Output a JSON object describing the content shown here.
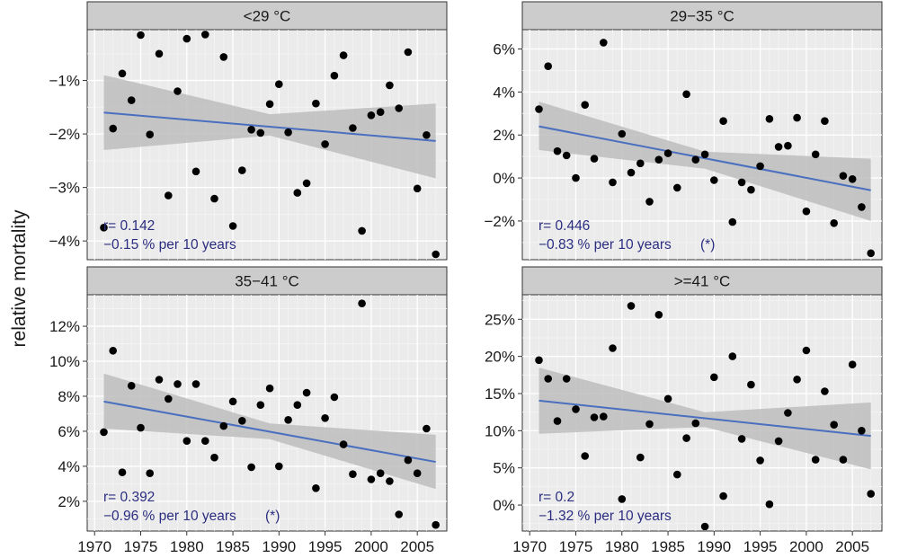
{
  "chart_data": {
    "type": "scatter",
    "ylabel": "relative mortality",
    "xlabel": "",
    "x_ticks": [
      1970,
      1975,
      1980,
      1985,
      1990,
      1995,
      2000,
      2005
    ],
    "x_tick_labels": [
      "1970",
      "1975",
      "1980",
      "1985",
      "1990",
      "1995",
      "2000",
      "2005"
    ],
    "xlim": [
      1969.2,
      2008.2
    ],
    "trend_color": "#4a6fbf",
    "annotation_color": "#2b2d80",
    "band_color": "#bdbdbd",
    "point_color": "#000000",
    "panel_background": "#ebebeb",
    "strip_color": "#cccccc",
    "panels": [
      {
        "title": "<29 °C",
        "ylim": [
          -4.35,
          -0.05
        ],
        "y_ticks": [
          -1,
          -2,
          -3,
          -4
        ],
        "y_tick_labels": [
          "−1%",
          "−2%",
          "−3%",
          "−4%"
        ],
        "trend": {
          "x": [
            1971,
            2007
          ],
          "y": [
            -1.6,
            -2.13
          ]
        },
        "band": {
          "x": [
            1971,
            1989,
            2007
          ],
          "upper": [
            -0.9,
            -1.63,
            -1.43
          ],
          "lower": [
            -2.3,
            -2.03,
            -2.83
          ]
        },
        "points": [
          {
            "x": 1971,
            "y": -3.75
          },
          {
            "x": 1972,
            "y": -1.9
          },
          {
            "x": 1973,
            "y": -0.87
          },
          {
            "x": 1974,
            "y": -1.37
          },
          {
            "x": 1975,
            "y": -0.15
          },
          {
            "x": 1976,
            "y": -2.01
          },
          {
            "x": 1977,
            "y": -0.5
          },
          {
            "x": 1978,
            "y": -3.15
          },
          {
            "x": 1979,
            "y": -1.2
          },
          {
            "x": 1980,
            "y": -0.22
          },
          {
            "x": 1981,
            "y": -2.7
          },
          {
            "x": 1982,
            "y": -0.14
          },
          {
            "x": 1983,
            "y": -3.21
          },
          {
            "x": 1984,
            "y": -0.56
          },
          {
            "x": 1985,
            "y": -3.72
          },
          {
            "x": 1986,
            "y": -2.68
          },
          {
            "x": 1987,
            "y": -1.92
          },
          {
            "x": 1988,
            "y": -1.98
          },
          {
            "x": 1989,
            "y": -1.44
          },
          {
            "x": 1990,
            "y": -1.07
          },
          {
            "x": 1991,
            "y": -1.97
          },
          {
            "x": 1992,
            "y": -3.1
          },
          {
            "x": 1993,
            "y": -2.92
          },
          {
            "x": 1994,
            "y": -1.43
          },
          {
            "x": 1995,
            "y": -2.19
          },
          {
            "x": 1996,
            "y": -0.91
          },
          {
            "x": 1997,
            "y": -0.53
          },
          {
            "x": 1998,
            "y": -1.89
          },
          {
            "x": 1999,
            "y": -3.81
          },
          {
            "x": 2000,
            "y": -1.65
          },
          {
            "x": 2001,
            "y": -1.59
          },
          {
            "x": 2002,
            "y": -1.09
          },
          {
            "x": 2003,
            "y": -1.52
          },
          {
            "x": 2004,
            "y": -0.47
          },
          {
            "x": 2005,
            "y": -3.02
          },
          {
            "x": 2006,
            "y": -2.02
          },
          {
            "x": 2007,
            "y": -4.25
          }
        ],
        "annotation_r": "r= 0.142",
        "annotation_trend": "−0.15 % per 10 years",
        "annotation_sig": ""
      },
      {
        "title": "29−35 °C",
        "ylim": [
          -3.8,
          6.9
        ],
        "y_ticks": [
          6,
          4,
          2,
          0,
          -2
        ],
        "y_tick_labels": [
          "6%",
          "4%",
          "2%",
          "0%",
          "−2%"
        ],
        "trend": {
          "x": [
            1971,
            2007
          ],
          "y": [
            2.4,
            -0.57
          ]
        },
        "band": {
          "x": [
            1971,
            1989,
            2007
          ],
          "upper": [
            3.55,
            1.23,
            0.9
          ],
          "lower": [
            1.3,
            0.43,
            -2.0
          ]
        },
        "points": [
          {
            "x": 1971,
            "y": 3.2
          },
          {
            "x": 1972,
            "y": 5.2
          },
          {
            "x": 1973,
            "y": 1.25
          },
          {
            "x": 1974,
            "y": 1.05
          },
          {
            "x": 1975,
            "y": 0.0
          },
          {
            "x": 1976,
            "y": 3.4
          },
          {
            "x": 1977,
            "y": 0.9
          },
          {
            "x": 1978,
            "y": 6.3
          },
          {
            "x": 1979,
            "y": -0.2
          },
          {
            "x": 1980,
            "y": 2.05
          },
          {
            "x": 1981,
            "y": 0.25
          },
          {
            "x": 1982,
            "y": 0.68
          },
          {
            "x": 1983,
            "y": -1.1
          },
          {
            "x": 1984,
            "y": 0.85
          },
          {
            "x": 1985,
            "y": 1.15
          },
          {
            "x": 1986,
            "y": -0.45
          },
          {
            "x": 1987,
            "y": 3.9
          },
          {
            "x": 1988,
            "y": 0.85
          },
          {
            "x": 1989,
            "y": 1.1
          },
          {
            "x": 1990,
            "y": -0.1
          },
          {
            "x": 1991,
            "y": 2.65
          },
          {
            "x": 1992,
            "y": -2.05
          },
          {
            "x": 1993,
            "y": -0.2
          },
          {
            "x": 1994,
            "y": -0.55
          },
          {
            "x": 1995,
            "y": 0.55
          },
          {
            "x": 1996,
            "y": 2.75
          },
          {
            "x": 1997,
            "y": 1.45
          },
          {
            "x": 1998,
            "y": 1.5
          },
          {
            "x": 1999,
            "y": 2.8
          },
          {
            "x": 2000,
            "y": -1.55
          },
          {
            "x": 2001,
            "y": 1.1
          },
          {
            "x": 2002,
            "y": 2.65
          },
          {
            "x": 2003,
            "y": -2.1
          },
          {
            "x": 2004,
            "y": 0.1
          },
          {
            "x": 2005,
            "y": -0.05
          },
          {
            "x": 2006,
            "y": -1.35
          },
          {
            "x": 2007,
            "y": -3.5
          }
        ],
        "annotation_r": "r= 0.446",
        "annotation_trend": "−0.83 % per 10 years",
        "annotation_sig": "(*)"
      },
      {
        "title": "35−41 °C",
        "ylim": [
          0.3,
          13.8
        ],
        "y_ticks": [
          12,
          10,
          8,
          6,
          4,
          2
        ],
        "y_tick_labels": [
          "12%",
          "10%",
          "8%",
          "6%",
          "4%",
          "2%"
        ],
        "trend": {
          "x": [
            1971,
            2007
          ],
          "y": [
            7.7,
            4.25
          ]
        },
        "band": {
          "x": [
            1971,
            1989,
            2007
          ],
          "upper": [
            9.3,
            6.45,
            5.8
          ],
          "lower": [
            6.15,
            5.55,
            2.7
          ]
        },
        "points": [
          {
            "x": 1971,
            "y": 5.95
          },
          {
            "x": 1972,
            "y": 10.6
          },
          {
            "x": 1973,
            "y": 3.65
          },
          {
            "x": 1974,
            "y": 8.6
          },
          {
            "x": 1975,
            "y": 6.2
          },
          {
            "x": 1976,
            "y": 3.6
          },
          {
            "x": 1977,
            "y": 8.95
          },
          {
            "x": 1978,
            "y": 7.85
          },
          {
            "x": 1979,
            "y": 8.7
          },
          {
            "x": 1980,
            "y": 5.45
          },
          {
            "x": 1981,
            "y": 8.7
          },
          {
            "x": 1982,
            "y": 5.45
          },
          {
            "x": 1983,
            "y": 4.5
          },
          {
            "x": 1984,
            "y": 6.3
          },
          {
            "x": 1985,
            "y": 7.7
          },
          {
            "x": 1986,
            "y": 6.6
          },
          {
            "x": 1987,
            "y": 3.95
          },
          {
            "x": 1988,
            "y": 7.5
          },
          {
            "x": 1989,
            "y": 8.45
          },
          {
            "x": 1990,
            "y": 4.0
          },
          {
            "x": 1991,
            "y": 6.65
          },
          {
            "x": 1992,
            "y": 7.5
          },
          {
            "x": 1993,
            "y": 8.2
          },
          {
            "x": 1994,
            "y": 2.75
          },
          {
            "x": 1995,
            "y": 6.75
          },
          {
            "x": 1996,
            "y": 7.95
          },
          {
            "x": 1997,
            "y": 5.25
          },
          {
            "x": 1998,
            "y": 3.55
          },
          {
            "x": 1999,
            "y": 13.3
          },
          {
            "x": 2000,
            "y": 3.25
          },
          {
            "x": 2001,
            "y": 3.6
          },
          {
            "x": 2002,
            "y": 3.15
          },
          {
            "x": 2003,
            "y": 1.25
          },
          {
            "x": 2004,
            "y": 4.35
          },
          {
            "x": 2005,
            "y": 3.6
          },
          {
            "x": 2006,
            "y": 6.15
          },
          {
            "x": 2007,
            "y": 0.65
          }
        ],
        "annotation_r": "r= 0.392",
        "annotation_trend": "−0.96 % per 10 years",
        "annotation_sig": "(*)"
      },
      {
        "title": ">=41 °C",
        "ylim": [
          -3.5,
          28.3
        ],
        "y_ticks": [
          25,
          20,
          15,
          10,
          5,
          0
        ],
        "y_tick_labels": [
          "25%",
          "20%",
          "15%",
          "10%",
          "5%",
          "0%"
        ],
        "trend": {
          "x": [
            1971,
            2007
          ],
          "y": [
            14.05,
            9.3
          ]
        },
        "band": {
          "x": [
            1971,
            1989,
            2007
          ],
          "upper": [
            18.5,
            12.5,
            13.8
          ],
          "lower": [
            9.6,
            10.5,
            4.8
          ]
        },
        "points": [
          {
            "x": 1971,
            "y": 19.5
          },
          {
            "x": 1972,
            "y": 17.0
          },
          {
            "x": 1973,
            "y": 11.3
          },
          {
            "x": 1974,
            "y": 17.0
          },
          {
            "x": 1975,
            "y": 12.9
          },
          {
            "x": 1976,
            "y": 6.6
          },
          {
            "x": 1977,
            "y": 11.8
          },
          {
            "x": 1978,
            "y": 11.9
          },
          {
            "x": 1979,
            "y": 21.1
          },
          {
            "x": 1980,
            "y": 0.8
          },
          {
            "x": 1981,
            "y": 26.8
          },
          {
            "x": 1982,
            "y": 6.4
          },
          {
            "x": 1983,
            "y": 10.9
          },
          {
            "x": 1984,
            "y": 25.6
          },
          {
            "x": 1985,
            "y": 14.3
          },
          {
            "x": 1986,
            "y": 4.1
          },
          {
            "x": 1987,
            "y": 9.0
          },
          {
            "x": 1988,
            "y": 11.0
          },
          {
            "x": 1989,
            "y": -2.9
          },
          {
            "x": 1990,
            "y": 17.2
          },
          {
            "x": 1991,
            "y": 1.2
          },
          {
            "x": 1992,
            "y": 20.0
          },
          {
            "x": 1993,
            "y": 8.9
          },
          {
            "x": 1994,
            "y": 16.2
          },
          {
            "x": 1995,
            "y": 6.0
          },
          {
            "x": 1996,
            "y": 0.1
          },
          {
            "x": 1997,
            "y": 8.6
          },
          {
            "x": 1998,
            "y": 12.4
          },
          {
            "x": 1999,
            "y": 16.9
          },
          {
            "x": 2000,
            "y": 20.8
          },
          {
            "x": 2001,
            "y": 6.1
          },
          {
            "x": 2002,
            "y": 15.3
          },
          {
            "x": 2003,
            "y": 10.8
          },
          {
            "x": 2004,
            "y": 6.1
          },
          {
            "x": 2005,
            "y": 18.9
          },
          {
            "x": 2006,
            "y": 10.0
          },
          {
            "x": 2007,
            "y": 1.5
          }
        ],
        "annotation_r": "r= 0.2",
        "annotation_trend": "−1.32 % per 10 years",
        "annotation_sig": ""
      }
    ]
  }
}
